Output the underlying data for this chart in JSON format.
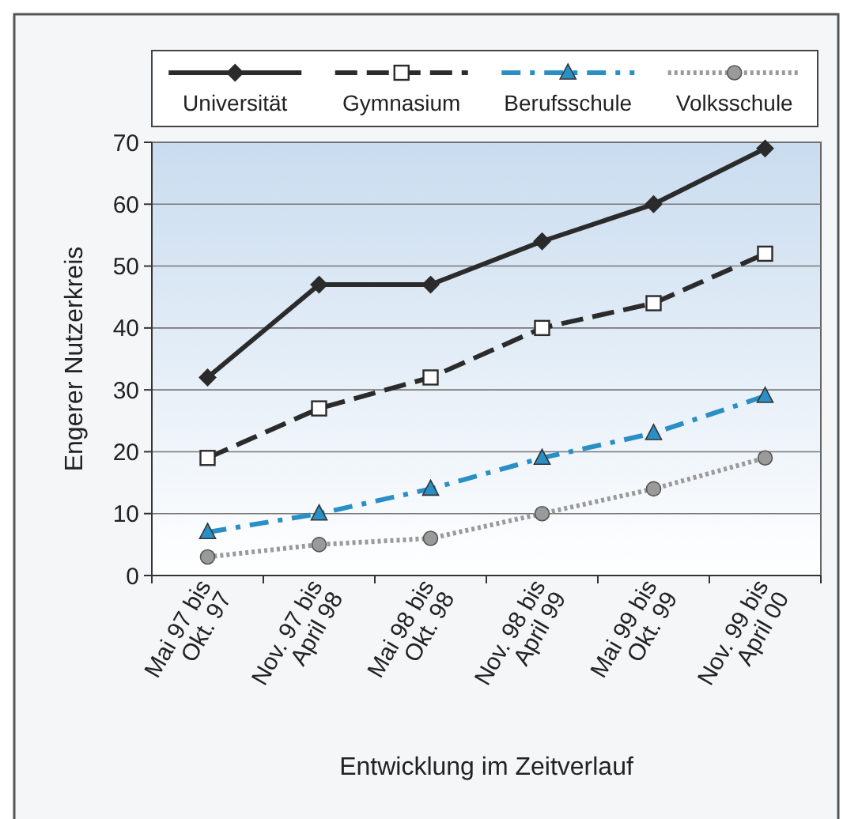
{
  "chart_data": {
    "type": "line",
    "xlabel": "Entwicklung im Zeitverlauf",
    "ylabel": "Engerer Nutzerkreis",
    "categories": [
      "Mai 97 bis\nOkt. 97",
      "Nov. 97 bis\nApril 98",
      "Mai 98 bis\nOkt. 98",
      "Nov. 98 bis\nApril 99",
      "Mai 99 bis\nOkt. 99",
      "Nov. 99 bis\nApril 00"
    ],
    "series": [
      {
        "name": "Universität",
        "color": "#2b2b2b",
        "marker": "diamond",
        "line_style": "solid",
        "values": [
          32,
          47,
          47,
          54,
          60,
          69
        ]
      },
      {
        "name": "Gymnasium",
        "color": "#2b2b2b",
        "marker": "square",
        "line_style": "dashed",
        "values": [
          19,
          27,
          32,
          40,
          44,
          52
        ]
      },
      {
        "name": "Berufsschule",
        "color": "#2a8fc4",
        "marker": "triangle",
        "line_style": "dashdot",
        "values": [
          7,
          10,
          14,
          19,
          23,
          29
        ]
      },
      {
        "name": "Volksschule",
        "color": "#9a9a9a",
        "marker": "circle",
        "line_style": "dotted",
        "values": [
          3,
          5,
          6,
          10,
          14,
          19
        ]
      }
    ],
    "ylim": [
      0,
      70
    ],
    "yticks": [
      0,
      10,
      20,
      30,
      40,
      50,
      60,
      70
    ],
    "grid": "y",
    "legend": "top"
  }
}
